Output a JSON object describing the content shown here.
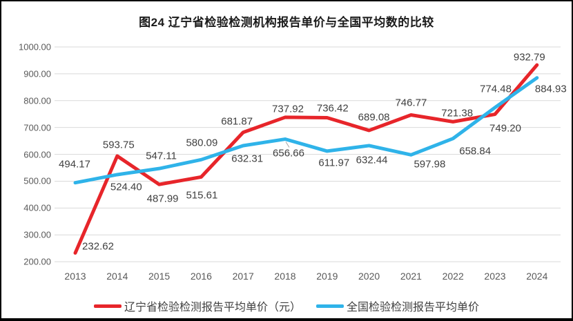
{
  "title": "图24 辽宁省检验检测机构报告单价与全国平均数的比较",
  "chart_data": {
    "type": "line",
    "title": "图24 辽宁省检验检测机构报告单价与全国平均数的比较",
    "categories": [
      "2013",
      "2014",
      "2015",
      "2016",
      "2017",
      "2018",
      "2019",
      "2020",
      "2021",
      "2022",
      "2023",
      "2024"
    ],
    "series": [
      {
        "name": "辽宁省检验检测报告平均单价（元）",
        "color": "#e7252a",
        "values": [
          232.62,
          593.75,
          487.99,
          515.61,
          681.87,
          737.92,
          736.42,
          689.08,
          746.77,
          721.38,
          749.2,
          932.79
        ],
        "label_offsets": [
          [
            33,
            -9
          ],
          [
            2,
            -16
          ],
          [
            5,
            21
          ],
          [
            1,
            27
          ],
          [
            -9,
            -16
          ],
          [
            4,
            -12
          ],
          [
            8,
            -14
          ],
          [
            7,
            -19
          ],
          [
            0,
            -17
          ],
          [
            6,
            -12
          ],
          [
            15,
            20
          ],
          [
            -11,
            -11
          ]
        ]
      },
      {
        "name": "全国检验检测报告平均单价",
        "color": "#2fb3e9",
        "values": [
          494.17,
          524.4,
          547.11,
          580.09,
          632.31,
          656.66,
          611.97,
          632.44,
          597.98,
          658.84,
          774.48,
          884.93
        ],
        "label_offsets": [
          [
            -1,
            -27
          ],
          [
            13,
            18
          ],
          [
            3,
            -18
          ],
          [
            1,
            -24
          ],
          [
            6,
            19
          ],
          [
            5,
            20
          ],
          [
            10,
            17
          ],
          [
            4,
            21
          ],
          [
            27,
            14
          ],
          [
            32,
            18
          ],
          [
            1,
            -27
          ],
          [
            20,
            16
          ]
        ]
      }
    ],
    "ylim": [
      200,
      1000
    ],
    "y_tick_values": [
      1000,
      900,
      800,
      700,
      600,
      500,
      400,
      300,
      200
    ],
    "y_tick_labels": [
      "1000.00",
      "900.00",
      "800.00",
      "700.00",
      "600.00",
      "500.00",
      "400.00",
      "300.00",
      "200.00"
    ],
    "grid": true,
    "grid_color": "#d9d9d9",
    "legend_position": "bottom",
    "leader_line": {
      "series": 1,
      "index": 5,
      "color": "#a6a6a6"
    }
  },
  "colors": {
    "frame_border": "#000000",
    "background": "#ffffff",
    "axis_text": "#595959",
    "data_label_text": "#404040",
    "title_text": "#1a1a1a"
  }
}
